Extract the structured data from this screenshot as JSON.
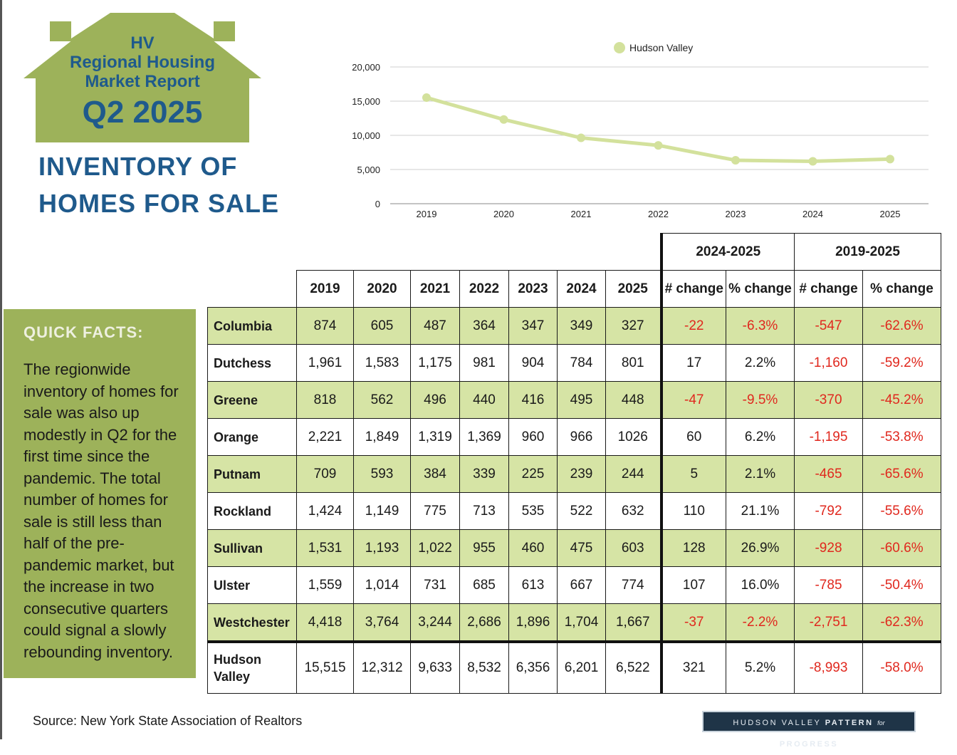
{
  "header": {
    "logo_line1": "HV",
    "logo_line2": "Regional Housing",
    "logo_line3": "Market Report",
    "logo_quarter": "Q2 2025",
    "title_line1": "INVENTORY OF",
    "title_line2": "HOMES FOR SALE"
  },
  "colors": {
    "brand_blue": "#1f5a8c",
    "olive": "#9db25a",
    "row_green": "#d6e4a5",
    "line_green": "#d3e19c",
    "negative_red": "#e0281e",
    "brand_navy": "#1f3447"
  },
  "chart_data": {
    "type": "line",
    "x": [
      "2019",
      "2020",
      "2021",
      "2022",
      "2023",
      "2024",
      "2025"
    ],
    "series": [
      {
        "name": "Hudson Valley",
        "values": [
          15515,
          12312,
          9633,
          8532,
          6356,
          6201,
          6522
        ]
      }
    ],
    "yticks": [
      "0",
      "5,000",
      "10,000",
      "15,000",
      "20,000"
    ],
    "ylim": [
      0,
      20000
    ],
    "grid": true,
    "legend_position": "top-center"
  },
  "quick_facts": {
    "title": "QUICK FACTS:",
    "body": "The regionwide inventory of homes for sale was also up modestly in Q2 for the first time since the pandemic. The total number of homes for sale is still less than half of the pre-pandemic market, but the increase in two consecutive quarters could signal a slowly rebounding inventory."
  },
  "table": {
    "group_headers": [
      "2024-2025",
      "2019-2025"
    ],
    "columns": [
      "2019",
      "2020",
      "2021",
      "2022",
      "2023",
      "2024",
      "2025",
      "# change",
      "% change",
      "# change",
      "% change"
    ],
    "rows": [
      {
        "county": "Columbia",
        "values": [
          "874",
          "605",
          "487",
          "364",
          "347",
          "349",
          "327",
          "-22",
          "-6.3%",
          "-547",
          "-62.6%"
        ]
      },
      {
        "county": "Dutchess",
        "values": [
          "1,961",
          "1,583",
          "1,175",
          "981",
          "904",
          "784",
          "801",
          "17",
          "2.2%",
          "-1,160",
          "-59.2%"
        ]
      },
      {
        "county": "Greene",
        "values": [
          "818",
          "562",
          "496",
          "440",
          "416",
          "495",
          "448",
          "-47",
          "-9.5%",
          "-370",
          "-45.2%"
        ]
      },
      {
        "county": "Orange",
        "values": [
          "2,221",
          "1,849",
          "1,319",
          "1,369",
          "960",
          "966",
          "1026",
          "60",
          "6.2%",
          "-1,195",
          "-53.8%"
        ]
      },
      {
        "county": "Putnam",
        "values": [
          "709",
          "593",
          "384",
          "339",
          "225",
          "239",
          "244",
          "5",
          "2.1%",
          "-465",
          "-65.6%"
        ]
      },
      {
        "county": "Rockland",
        "values": [
          "1,424",
          "1,149",
          "775",
          "713",
          "535",
          "522",
          "632",
          "110",
          "21.1%",
          "-792",
          "-55.6%"
        ]
      },
      {
        "county": "Sullivan",
        "values": [
          "1,531",
          "1,193",
          "1,022",
          "955",
          "460",
          "475",
          "603",
          "128",
          "26.9%",
          "-928",
          "-60.6%"
        ]
      },
      {
        "county": "Ulster",
        "values": [
          "1,559",
          "1,014",
          "731",
          "685",
          "613",
          "667",
          "774",
          "107",
          "16.0%",
          "-785",
          "-50.4%"
        ]
      },
      {
        "county": "Westchester",
        "values": [
          "4,418",
          "3,764",
          "3,244",
          "2,686",
          "1,896",
          "1,704",
          "1,667",
          "-37",
          "-2.2%",
          "-2,751",
          "-62.3%"
        ]
      },
      {
        "county": "Hudson Valley",
        "values": [
          "15,515",
          "12,312",
          "9,633",
          "8,532",
          "6,356",
          "6,201",
          "6,522",
          "321",
          "5.2%",
          "-8,993",
          "-58.0%"
        ]
      }
    ]
  },
  "footer": {
    "source": "Source: New York State Association of Realtors",
    "brand_pre": "HUDSON VALLEY",
    "brand_mid": "PATTERN",
    "brand_for": "for",
    "brand_post": "PROGRESS"
  }
}
